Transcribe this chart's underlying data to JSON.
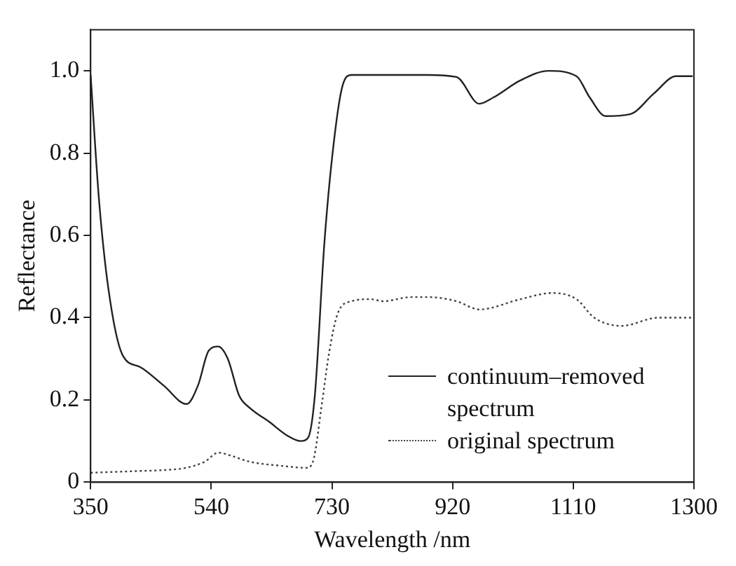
{
  "chart_data": {
    "type": "line",
    "xlabel": "Wavelength /nm",
    "ylabel": "Reflectance",
    "xlim": [
      350,
      1300
    ],
    "xticks": [
      350,
      540,
      730,
      920,
      1110,
      1300
    ],
    "ylim": [
      0,
      1.1
    ],
    "yticks": [
      0,
      0.2,
      0.4,
      0.6,
      0.8,
      {
        "value": 1,
        "label": "1.0"
      }
    ],
    "grid": false,
    "legend": "bottom right",
    "marker": "none",
    "series": [
      {
        "name": "continuum–removed spectrum",
        "color": "#222222",
        "line_style": "solid",
        "x": [
          350,
          363,
          378,
          400,
          428,
          465,
          501,
          519,
          536,
          551,
          566,
          584,
          601,
          631,
          659,
          681,
          692,
          703,
          718,
          731,
          746,
          761,
          790,
          830,
          880,
          926,
          962,
          984,
          1027,
          1071,
          1115,
          1136,
          1161,
          1200,
          1237,
          1272,
          1298
        ],
        "values": [
          0.99,
          0.69,
          0.47,
          0.31,
          0.28,
          0.235,
          0.19,
          0.235,
          0.32,
          0.33,
          0.3,
          0.21,
          0.18,
          0.147,
          0.114,
          0.1,
          0.107,
          0.21,
          0.58,
          0.8,
          0.96,
          0.99,
          0.99,
          0.99,
          0.99,
          0.985,
          0.92,
          0.935,
          0.977,
          1.0,
          0.987,
          0.935,
          0.89,
          0.895,
          0.945,
          0.987,
          0.987
        ]
      },
      {
        "name": "original spectrum",
        "color": "#444444",
        "line_style": "dotted",
        "x": [
          350,
          420,
          470,
          500,
          530,
          551,
          570,
          600,
          650,
          690,
          700,
          715,
          725,
          739,
          761,
          790,
          811,
          854,
          883,
          926,
          962,
          1027,
          1077,
          1115,
          1143,
          1186,
          1244,
          1300
        ],
        "values": [
          0.023,
          0.027,
          0.03,
          0.035,
          0.05,
          0.072,
          0.065,
          0.05,
          0.04,
          0.035,
          0.05,
          0.2,
          0.31,
          0.41,
          0.44,
          0.445,
          0.44,
          0.45,
          0.45,
          0.44,
          0.42,
          0.445,
          0.46,
          0.445,
          0.4,
          0.38,
          0.4,
          0.4
        ]
      }
    ]
  }
}
